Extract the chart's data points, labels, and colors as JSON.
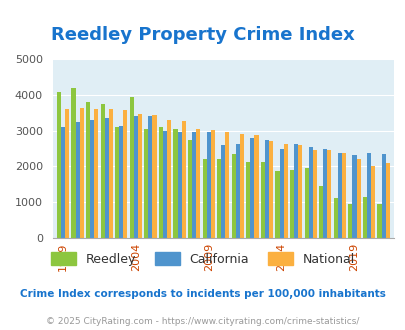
{
  "title": "Reedley Property Crime Index",
  "title_color": "#1874CD",
  "years": [
    1999,
    2000,
    2001,
    2002,
    2003,
    2004,
    2005,
    2006,
    2007,
    2008,
    2009,
    2010,
    2011,
    2012,
    2013,
    2014,
    2015,
    2016,
    2017,
    2018,
    2019,
    2020,
    2021
  ],
  "reedley": [
    4080,
    4200,
    3800,
    3750,
    3100,
    3950,
    3050,
    3100,
    3050,
    2750,
    2200,
    2200,
    2350,
    2130,
    2130,
    1880,
    1900,
    1960,
    1450,
    1120,
    950,
    1150,
    950
  ],
  "california": [
    3100,
    3250,
    3300,
    3350,
    3130,
    3420,
    3420,
    3000,
    2950,
    2950,
    2950,
    2600,
    2620,
    2800,
    2750,
    2480,
    2620,
    2550,
    2500,
    2380,
    2330,
    2380,
    2340
  ],
  "national": [
    3600,
    3650,
    3620,
    3600,
    3580,
    3480,
    3450,
    3300,
    3270,
    3060,
    3020,
    2950,
    2920,
    2890,
    2720,
    2620,
    2600,
    2450,
    2460,
    2360,
    2200,
    2000,
    2100
  ],
  "reedley_color": "#8DC63F",
  "california_color": "#4F94CD",
  "national_color": "#FBB040",
  "bg_color": "#E0EEF5",
  "ylim": [
    0,
    5000
  ],
  "yticks": [
    0,
    1000,
    2000,
    3000,
    4000,
    5000
  ],
  "xtick_years": [
    1999,
    2004,
    2009,
    2014,
    2019
  ],
  "footnote": "Crime Index corresponds to incidents per 100,000 inhabitants",
  "footnote2": "© 2025 CityRating.com - https://www.cityrating.com/crime-statistics/",
  "footnote_color": "#1874CD",
  "footnote2_color": "#999999"
}
